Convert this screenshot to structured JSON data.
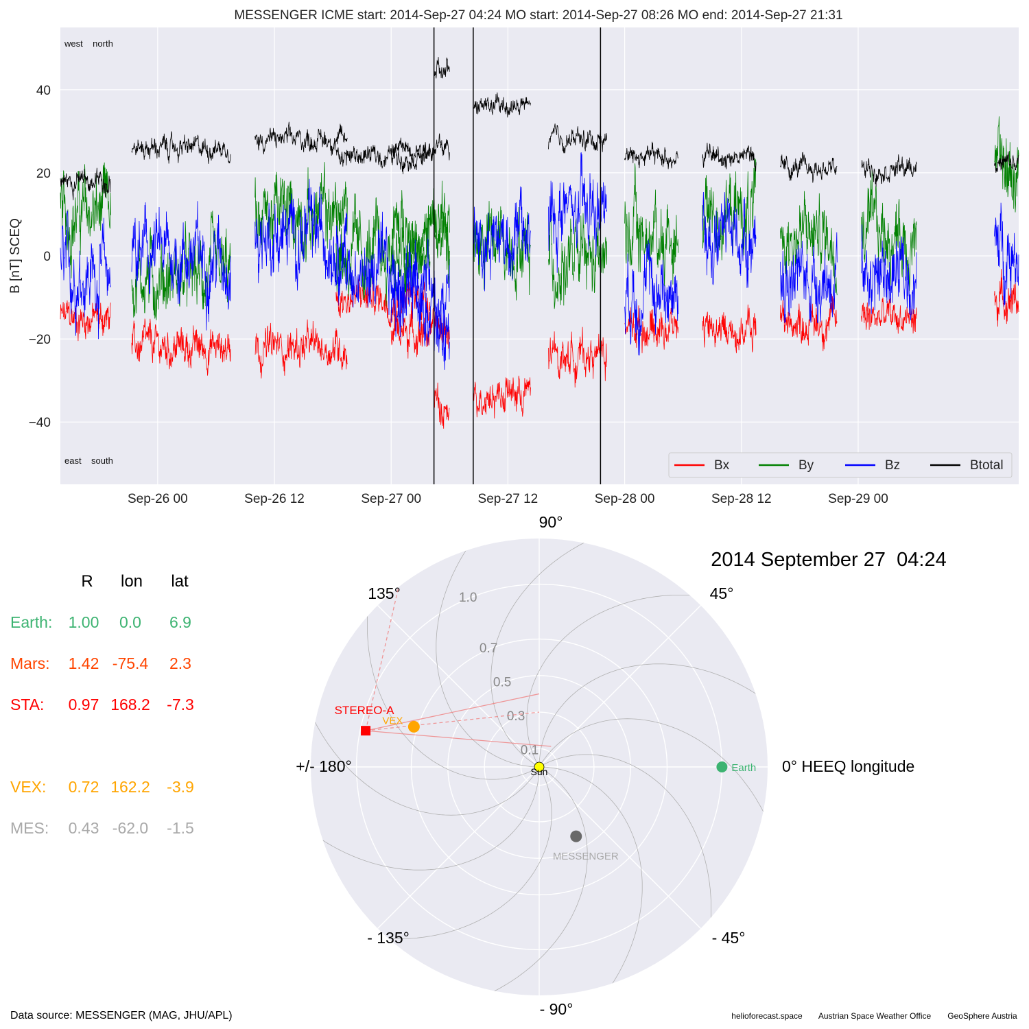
{
  "chart_data": [
    {
      "type": "line",
      "title": "MESSENGER    ICME start: 2014-Sep-27 04:24   MO start: 2014-Sep-27 08:26   MO end: 2014-Sep-27 21:31",
      "ylabel": "B [nT] SCEQ",
      "xlim": [
        "2014-09-25 14:00",
        "2014-09-29 16:30"
      ],
      "ylim": [
        -55,
        55
      ],
      "x_ticks": [
        {
          "t": "2014-09-26 00:00",
          "label": "Sep-26 00"
        },
        {
          "t": "2014-09-26 12:00",
          "label": "Sep-26 12"
        },
        {
          "t": "2014-09-27 00:00",
          "label": "Sep-27 00"
        },
        {
          "t": "2014-09-27 12:00",
          "label": "Sep-27 12"
        },
        {
          "t": "2014-09-28 00:00",
          "label": "Sep-28 00"
        },
        {
          "t": "2014-09-28 12:00",
          "label": "Sep-28 12"
        },
        {
          "t": "2014-09-29 00:00",
          "label": "Sep-29 00"
        }
      ],
      "y_ticks": [
        {
          "v": 40,
          "label": "40"
        },
        {
          "v": 20,
          "label": "20"
        },
        {
          "v": 0,
          "label": "0"
        },
        {
          "v": -20,
          "label": "−20"
        },
        {
          "v": -40,
          "label": "−40"
        }
      ],
      "grid": true,
      "legend_position": "lower-right",
      "annotations": {
        "top_left": "west    north",
        "bottom_left": "east    south"
      },
      "event_lines": [
        "2014-09-27 04:24",
        "2014-09-27 08:26",
        "2014-09-27 21:31"
      ],
      "data_segments": [
        {
          "start": "2014-09-25 14:00",
          "end": "2014-09-25 19:10",
          "bx": -15,
          "by": 10,
          "bz": -4,
          "bt": 18
        },
        {
          "start": "2014-09-25 21:20",
          "end": "2014-09-26 07:30",
          "bx": -22,
          "by": -5,
          "bz": 0,
          "bt": 26
        },
        {
          "start": "2014-09-26 10:00",
          "end": "2014-09-26 19:30",
          "bx": -22,
          "by": 10,
          "bz": 5,
          "bt": 28
        },
        {
          "start": "2014-09-26 18:20",
          "end": "2014-09-27 04:00",
          "bx": -10,
          "by": 0,
          "bz": -5,
          "bt": 24
        },
        {
          "start": "2014-09-27 00:00",
          "end": "2014-09-27 06:00",
          "bx": -18,
          "by": 5,
          "bz": -10,
          "bt": 26
        },
        {
          "start": "2014-09-27 04:24",
          "end": "2014-09-27 06:00",
          "bx": -35,
          "by": 5,
          "bz": -20,
          "bt": 44
        },
        {
          "start": "2014-09-27 08:26",
          "end": "2014-09-27 14:20",
          "bx": -33,
          "by": 3,
          "bz": 5,
          "bt": 36
        },
        {
          "start": "2014-09-27 16:10",
          "end": "2014-09-27 22:10",
          "bx": -24,
          "by": -2,
          "bz": 10,
          "bt": 28
        },
        {
          "start": "2014-09-28 00:00",
          "end": "2014-09-28 05:30",
          "bx": -17,
          "by": 5,
          "bz": -8,
          "bt": 24
        },
        {
          "start": "2014-09-28 08:00",
          "end": "2014-09-28 13:30",
          "bx": -18,
          "by": 10,
          "bz": 5,
          "bt": 24
        },
        {
          "start": "2014-09-28 16:00",
          "end": "2014-09-28 21:50",
          "bx": -16,
          "by": 5,
          "bz": -5,
          "bt": 21
        },
        {
          "start": "2014-09-29 00:20",
          "end": "2014-09-29 06:00",
          "bx": -15,
          "by": 5,
          "bz": -5,
          "bt": 21
        },
        {
          "start": "2014-09-29 14:00",
          "end": "2014-09-29 16:30",
          "bx": -10,
          "by": 20,
          "bz": 2,
          "bt": 22
        }
      ],
      "series": [
        {
          "name": "Bx",
          "color": "#ff0000"
        },
        {
          "name": "By",
          "color": "#008000"
        },
        {
          "name": "Bz",
          "color": "#0000ff"
        },
        {
          "name": "Btotal",
          "color": "#000000"
        }
      ]
    },
    {
      "type": "scatter",
      "title": "2014 September 27  04:24",
      "coordinate_system": "polar",
      "r_max": 1.25,
      "r_ticks": [
        {
          "v": 0.1,
          "label": "0.1"
        },
        {
          "v": 0.3,
          "label": "0.3"
        },
        {
          "v": 0.5,
          "label": "0.5"
        },
        {
          "v": 0.7,
          "label": "0.7"
        },
        {
          "v": 1.0,
          "label": "1.0"
        }
      ],
      "angle_labels": [
        {
          "deg": 90,
          "label": "90°"
        },
        {
          "deg": 45,
          "label": "45°"
        },
        {
          "deg": 0,
          "label": "0° HEEQ longitude"
        },
        {
          "deg": -45,
          "label": "- 45°"
        },
        {
          "deg": -90,
          "label": "- 90°"
        },
        {
          "deg": -135,
          "label": "- 135°"
        },
        {
          "deg": 180,
          "label": "+/- 180°"
        },
        {
          "deg": 135,
          "label": "135°"
        }
      ],
      "sun": {
        "label": "Sun",
        "color": "#ffff00"
      },
      "bodies": [
        {
          "name": "Earth",
          "label": "Earth",
          "r": 1.0,
          "lon": 0.0,
          "color": "#3cb371",
          "marker": "circle"
        },
        {
          "name": "STA",
          "label": "STEREO-A",
          "r": 0.97,
          "lon": 168.2,
          "color": "#ff0000",
          "marker": "square"
        },
        {
          "name": "VEX",
          "label": "VEX",
          "r": 0.72,
          "lon": 162.2,
          "color": "#ffa500",
          "marker": "circle"
        },
        {
          "name": "MES",
          "label": "MESSENGER",
          "r": 0.43,
          "lon": -62.0,
          "color": "#696969",
          "marker": "circle"
        }
      ],
      "fov_lines": [
        {
          "from": "STA",
          "to_r": 0.4,
          "to_lon": 90,
          "style": "solid"
        },
        {
          "from": "STA",
          "to_r": 0.13,
          "to_lon": 60,
          "style": "solid"
        },
        {
          "from": "STA",
          "to_r": 0.3,
          "to_lon": 90,
          "style": "dashed"
        },
        {
          "from": "STA",
          "to_r": 1.25,
          "to_lon": 128,
          "style": "dashed"
        }
      ],
      "position_table": {
        "headers": [
          "R",
          "lon",
          "lat"
        ],
        "rows": [
          {
            "label": "Earth:",
            "values": [
              "1.00",
              "0.0",
              "6.9"
            ],
            "color": "#3cb371"
          },
          {
            "label": "Mars:",
            "values": [
              "1.42",
              "-75.4",
              "2.3"
            ],
            "color": "#ff4500"
          },
          {
            "label": "STA:",
            "values": [
              "0.97",
              "168.2",
              "-7.3"
            ],
            "color": "#ff0000"
          },
          {
            "label": "VEX:",
            "values": [
              "0.72",
              "162.2",
              "-3.9"
            ],
            "color": "#ffa500"
          },
          {
            "label": "MES:",
            "values": [
              "0.43",
              "-62.0",
              "-1.5"
            ],
            "color": "#a9a9a9"
          }
        ]
      }
    }
  ],
  "footer": {
    "source": "Data source: MESSENGER (MAG, JHU/APL)",
    "credits": [
      "helioforecast.space",
      "Austrian Space Weather Office",
      "GeoSphere Austria"
    ]
  }
}
